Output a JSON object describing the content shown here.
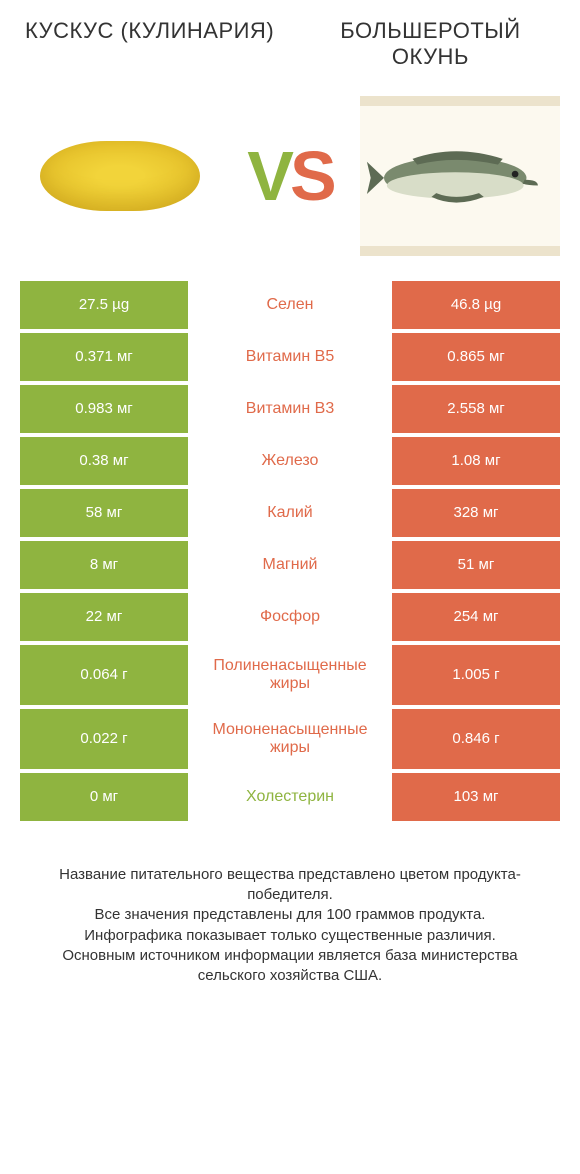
{
  "header": {
    "left": "КУСКУС (КУЛИНАРИЯ)",
    "right": "БОЛЬШЕРОТЫЙ ОКУНЬ"
  },
  "vs": {
    "v": "V",
    "s": "S"
  },
  "colors": {
    "green": "#8fb440",
    "orange": "#e06a4a",
    "background": "#ffffff",
    "text": "#333333",
    "frame_border": "#ece3cc",
    "frame_bg": "#fcf9ef",
    "couscous_center": "#f2d43a",
    "couscous_mid": "#e8c52e",
    "couscous_edge": "#d8b020",
    "fish_body": "#7a8a6e",
    "fish_belly": "#d8ddc8",
    "fish_fin": "#5d6b54"
  },
  "typography": {
    "header_fontsize": 22,
    "vs_fontsize": 70,
    "cell_fontsize": 15,
    "mid_fontsize": 16,
    "footer_fontsize": 15
  },
  "rows": [
    {
      "left": "27.5 µg",
      "mid": "Селен",
      "right": "46.8 µg",
      "winner": "right",
      "tall": false
    },
    {
      "left": "0.371 мг",
      "mid": "Витамин B5",
      "right": "0.865 мг",
      "winner": "right",
      "tall": false
    },
    {
      "left": "0.983 мг",
      "mid": "Витамин B3",
      "right": "2.558 мг",
      "winner": "right",
      "tall": false
    },
    {
      "left": "0.38 мг",
      "mid": "Железо",
      "right": "1.08 мг",
      "winner": "right",
      "tall": false
    },
    {
      "left": "58 мг",
      "mid": "Калий",
      "right": "328 мг",
      "winner": "right",
      "tall": false
    },
    {
      "left": "8 мг",
      "mid": "Магний",
      "right": "51 мг",
      "winner": "right",
      "tall": false
    },
    {
      "left": "22 мг",
      "mid": "Фосфор",
      "right": "254 мг",
      "winner": "right",
      "tall": false
    },
    {
      "left": "0.064 г",
      "mid": "Полиненасыщенные жиры",
      "right": "1.005 г",
      "winner": "right",
      "tall": true
    },
    {
      "left": "0.022 г",
      "mid": "Мононенасыщенные жиры",
      "right": "0.846 г",
      "winner": "right",
      "tall": true
    },
    {
      "left": "0 мг",
      "mid": "Холестерин",
      "right": "103 мг",
      "winner": "left",
      "tall": false
    }
  ],
  "footer": {
    "l1": "Название питательного вещества представлено цветом продукта-победителя.",
    "l2": "Все значения представлены для 100 граммов продукта.",
    "l3": "Инфографика показывает только существенные различия.",
    "l4": "Основным источником информации является база министерства сельского хозяйства США."
  }
}
